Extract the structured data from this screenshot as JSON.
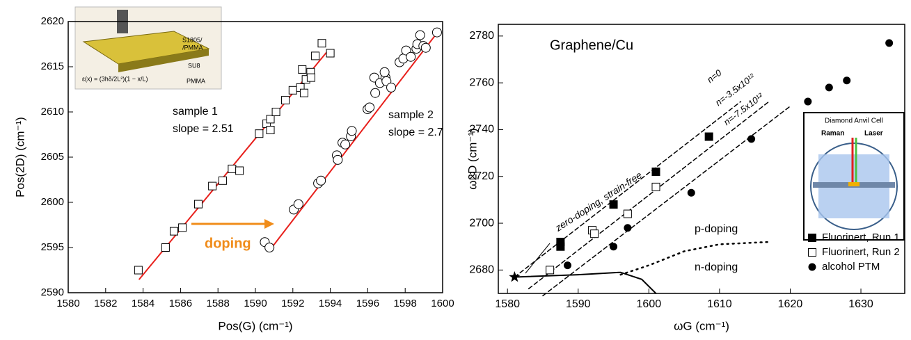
{
  "chart_data": [
    {
      "type": "scatter",
      "xlabel": "Pos(G) (cm⁻¹)",
      "ylabel": "Pos(2D) (cm⁻¹)",
      "xlim": [
        1580,
        1600
      ],
      "ylim": [
        2590,
        2620
      ],
      "xticks": [
        1580,
        1582,
        1584,
        1586,
        1588,
        1590,
        1592,
        1594,
        1596,
        1598,
        1600
      ],
      "yticks": [
        2590,
        2595,
        2600,
        2605,
        2610,
        2615,
        2620
      ],
      "series": [
        {
          "marker": "square-open",
          "color": "#000000",
          "x": [
            1583.75,
            1585.2,
            1585.65,
            1586.1,
            1586.95,
            1587.7,
            1588.25,
            1588.75,
            1589.15,
            1590.2,
            1590.6,
            1590.8,
            1590.8,
            1591.1,
            1591.6,
            1592,
            1592.4,
            1592.95,
            1592.5,
            1592.6,
            1592.7,
            1592.97,
            1593.2,
            1593.55,
            1594
          ],
          "values": [
            2592.5,
            2595,
            2596.8,
            2597.2,
            2599.8,
            2601.8,
            2602.4,
            2603.7,
            2603.5,
            2607.6,
            2608.7,
            2608,
            2609.2,
            2610,
            2611.3,
            2612.4,
            2612.7,
            2614.4,
            2614.7,
            2612.1,
            2613.6,
            2613.8,
            2616.2,
            2617.6,
            2616.5
          ]
        },
        {
          "marker": "circle-open",
          "color": "#000000",
          "x": [
            1590.5,
            1590.75,
            1592.05,
            1592.3,
            1593.35,
            1593.5,
            1594.35,
            1594.4,
            1594.65,
            1594.8,
            1595.1,
            1595.15,
            1595.99,
            1596.1,
            1596.35,
            1596.4,
            1596.65,
            1596.95,
            1597,
            1597.25,
            1597.7,
            1597.9,
            1598.05,
            1598.3,
            1598.6,
            1598.65,
            1598.8,
            1598.97,
            1599.1,
            1599.7,
            1596.9
          ],
          "values": [
            2595.6,
            2595,
            2599.2,
            2599.8,
            2602.1,
            2602.4,
            2605.2,
            2604.7,
            2606.6,
            2606.4,
            2607.3,
            2607.9,
            2610.3,
            2610.5,
            2613.8,
            2612.1,
            2613.2,
            2613.8,
            2613.4,
            2612.7,
            2615.5,
            2615.9,
            2616.8,
            2616.1,
            2617,
            2617.5,
            2618.5,
            2617.3,
            2617.1,
            2618.8,
            2614.4
          ]
        }
      ],
      "lines": [
        {
          "style": "solid",
          "color": "#e8201c",
          "x": [
            1583.8,
            1593.8
          ],
          "values": [
            2591.5,
            2616.6
          ]
        },
        {
          "style": "solid",
          "color": "#e8201c",
          "x": [
            1590.8,
            1599.8
          ],
          "values": [
            2594.8,
            2619
          ]
        }
      ],
      "annotations": [
        "sample 1",
        "slope = 2.51",
        "sample 2",
        "slope = 2.7",
        "doping"
      ],
      "inset_labels": [
        "S1805/",
        "/PMMA",
        "SU8",
        "PMMA",
        "ε(x) = (3hδ/2L²)(1 − x/L)"
      ]
    },
    {
      "type": "scatter",
      "title": "Graphene/Cu",
      "xlabel": "ωG (cm⁻¹)",
      "ylabel": "ω2D (cm⁻¹)",
      "xlim": [
        1578.7,
        1636.2
      ],
      "ylim": [
        2670,
        2785
      ],
      "xticks": [
        1580,
        1590,
        1600,
        1610,
        1620,
        1630
      ],
      "yticks": [
        2680,
        2700,
        2720,
        2740,
        2760,
        2780
      ],
      "series": [
        {
          "name": "Fluorinert, Run 1",
          "marker": "square",
          "color": "#000000",
          "x": [
            1587.5,
            1587.5,
            1595,
            1601,
            1608.5
          ],
          "values": [
            2692,
            2690,
            2708,
            2722,
            2737
          ]
        },
        {
          "name": "Fluorinert, Run 2",
          "marker": "square-open",
          "color": "#000000",
          "x": [
            1586,
            1592,
            1592.3,
            1597,
            1601
          ],
          "values": [
            2680,
            2697,
            2695.5,
            2704,
            2715.5
          ]
        },
        {
          "name": "alcohol PTM",
          "marker": "circle",
          "color": "#000000",
          "x": [
            1588.5,
            1595,
            1597,
            1606,
            1614.5,
            1622.5,
            1625.5,
            1628,
            1634
          ],
          "values": [
            2682,
            2690,
            2698,
            2713,
            2736,
            2752,
            2758,
            2761,
            2777
          ]
        }
      ],
      "lines": [
        {
          "label": "n=0",
          "style": "dashed",
          "color": "#000000",
          "x": [
            1581,
            1613
          ],
          "values": [
            2677,
            2752
          ]
        },
        {
          "label": "n=-3.5x10¹²",
          "style": "dashed",
          "color": "#000000",
          "x": [
            1583,
            1617
          ],
          "values": [
            2672,
            2752
          ]
        },
        {
          "label": "n=-7.5x10¹²",
          "style": "dashed",
          "color": "#000000",
          "x": [
            1585,
            1620
          ],
          "values": [
            2669,
            2750
          ]
        },
        {
          "label": "p-doping",
          "style": "dotted",
          "color": "#000000",
          "x": [
            1596,
            1600,
            1605,
            1610,
            1617
          ],
          "values": [
            2678,
            2682,
            2688,
            2691,
            2692
          ]
        },
        {
          "label": "n-doping",
          "style": "solid",
          "color": "#000000",
          "x": [
            1581,
            1590,
            1596,
            1599,
            1601
          ],
          "values": [
            2677,
            2678,
            2679,
            2676,
            2670
          ]
        }
      ],
      "reference_point": {
        "x": 1581,
        "y": 2677
      },
      "annotations": [
        "zero-doping, strain-free"
      ],
      "inset_labels": [
        "Diamond Anvil Cell",
        "Raman",
        "Laser"
      ],
      "legend": "lower right"
    }
  ]
}
